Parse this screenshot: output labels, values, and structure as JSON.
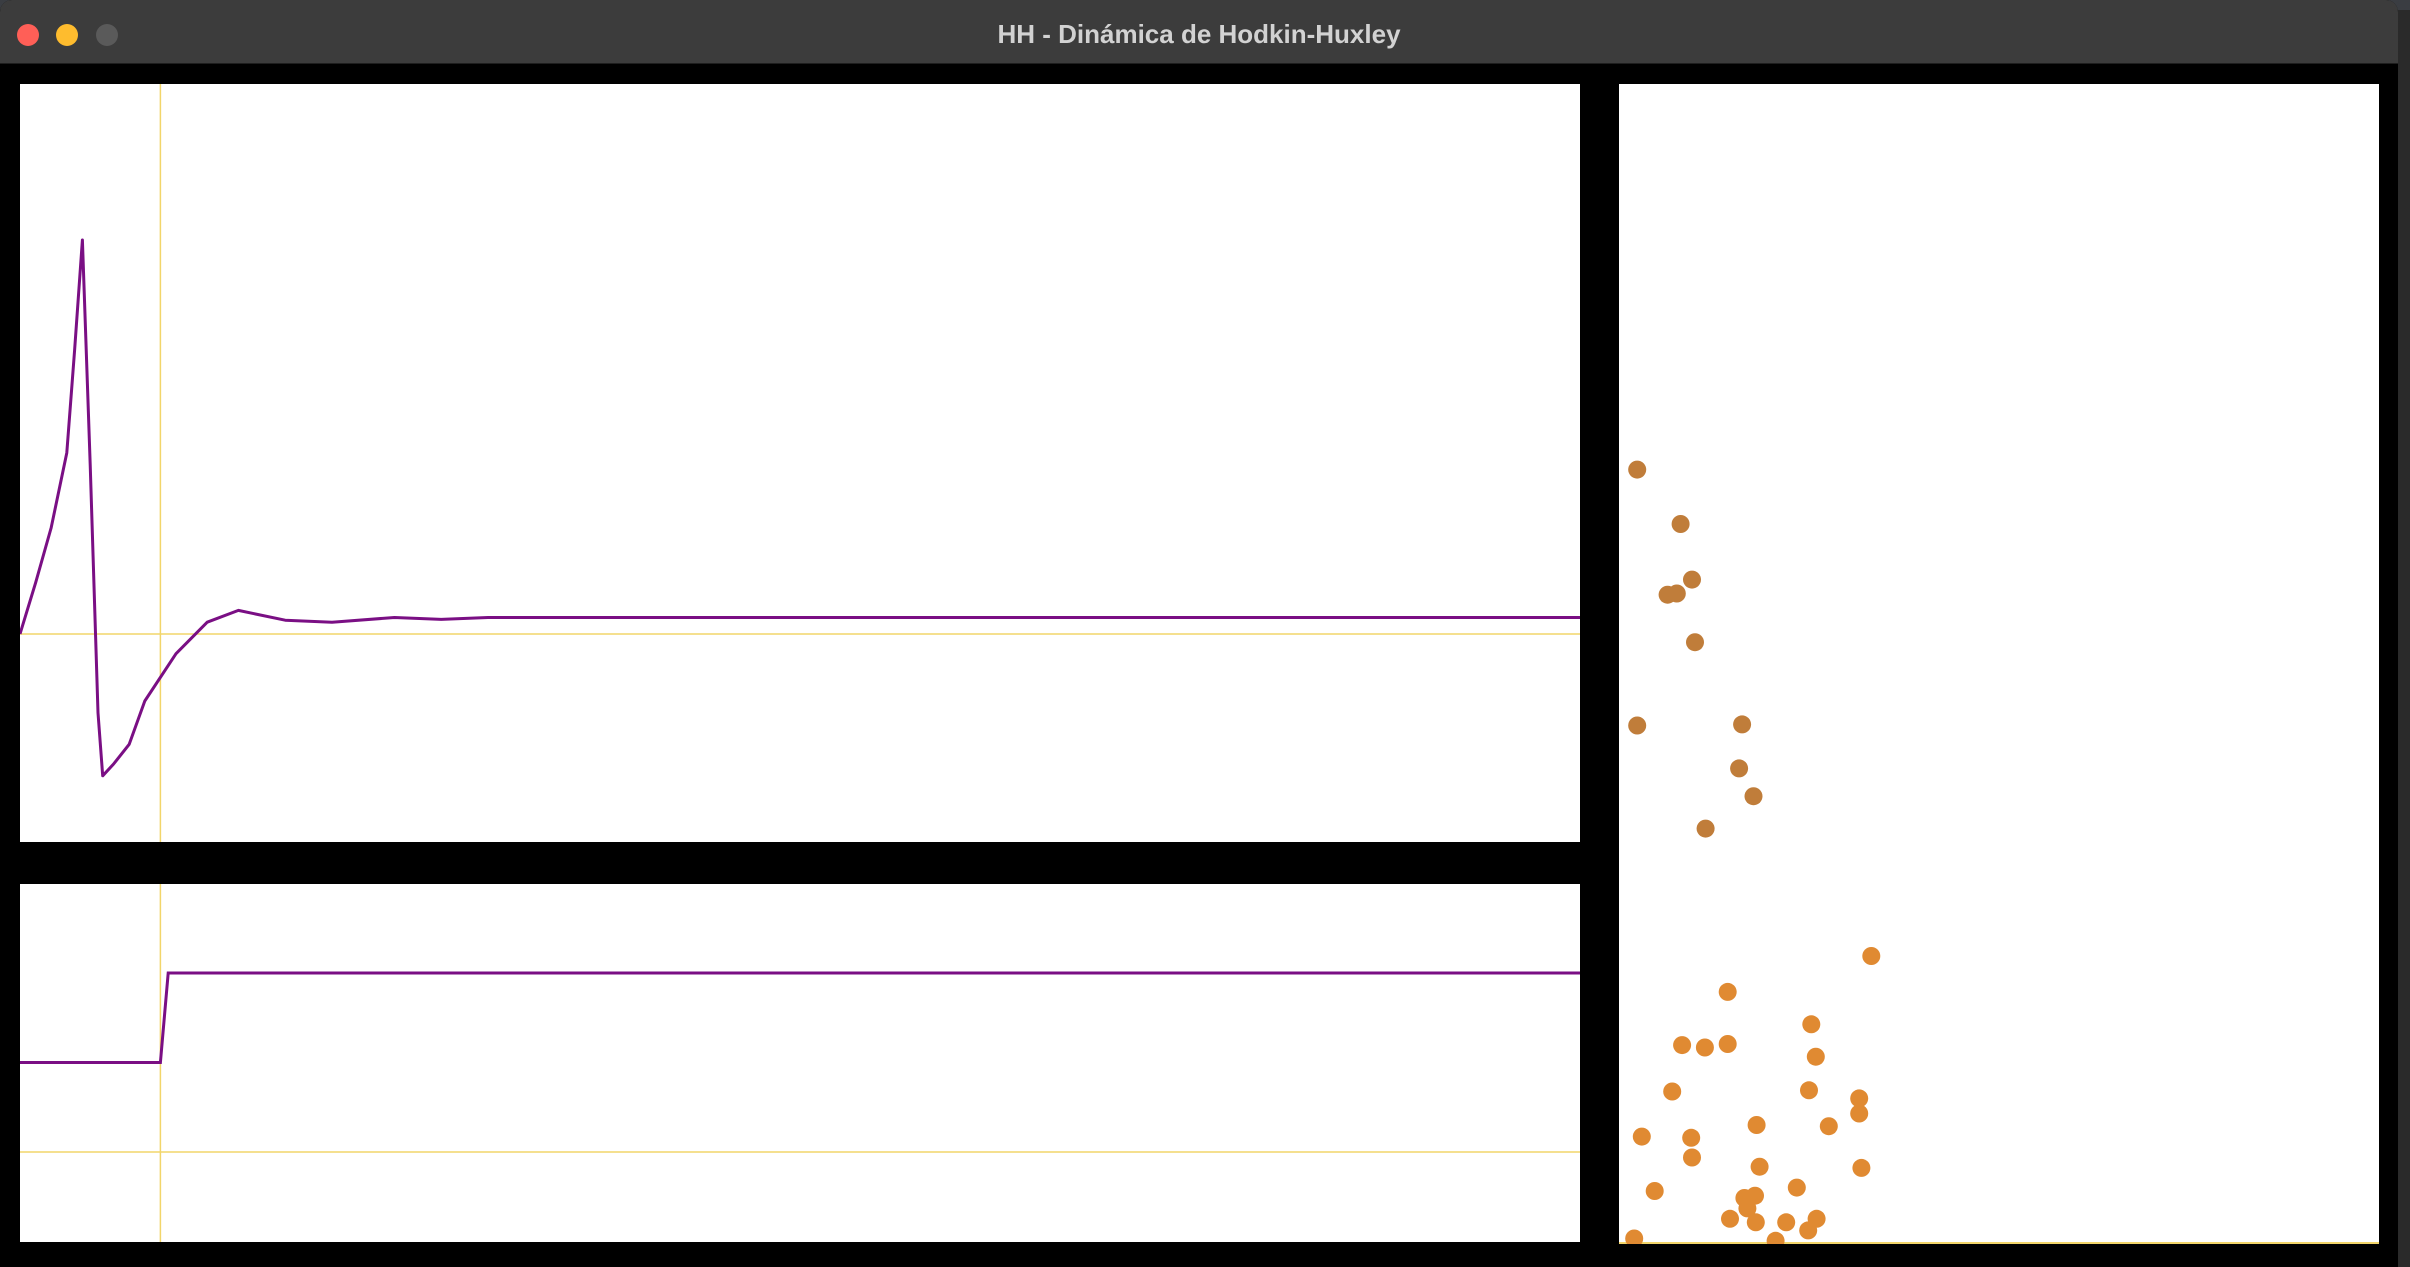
{
  "window": {
    "title": "HH - Dinámica de Hodkin-Huxley"
  },
  "colors": {
    "trace": "#7a0f84",
    "axis": "#f2d56a",
    "dot_upper": "#c07d3a",
    "dot_lower": "#e08a32",
    "panel_bg": "#ffffff",
    "frame": "#000000"
  },
  "voltage_trace": {
    "samples": [
      [
        0.0,
        0.0
      ],
      [
        0.01,
        0.13
      ],
      [
        0.02,
        0.27
      ],
      [
        0.03,
        0.46
      ],
      [
        0.035,
        0.72
      ],
      [
        0.04,
        1.0
      ],
      [
        0.045,
        0.43
      ],
      [
        0.05,
        -0.2
      ],
      [
        0.053,
        -0.36
      ],
      [
        0.06,
        -0.33
      ],
      [
        0.07,
        -0.28
      ],
      [
        0.08,
        -0.17
      ],
      [
        0.1,
        -0.05
      ],
      [
        0.12,
        0.03
      ],
      [
        0.14,
        0.06
      ],
      [
        0.17,
        0.035
      ],
      [
        0.2,
        0.03
      ],
      [
        0.24,
        0.042
      ],
      [
        0.27,
        0.037
      ],
      [
        0.3,
        0.042
      ],
      [
        1.0,
        0.042
      ]
    ],
    "baseline": 0.0,
    "stim_time": 0.09
  },
  "current_trace": {
    "samples": [
      [
        0.0,
        0.5
      ],
      [
        0.09,
        0.5
      ],
      [
        0.095,
        1.0
      ],
      [
        1.0,
        1.0
      ]
    ],
    "baseline": 0.0,
    "stim_time": 0.09
  },
  "scatter": {
    "points": [
      [
        0.024,
        0.667
      ],
      [
        0.081,
        0.62
      ],
      [
        0.096,
        0.572
      ],
      [
        0.064,
        0.559
      ],
      [
        0.076,
        0.56
      ],
      [
        0.1,
        0.518
      ],
      [
        0.024,
        0.446
      ],
      [
        0.162,
        0.447
      ],
      [
        0.158,
        0.409
      ],
      [
        0.177,
        0.385
      ],
      [
        0.114,
        0.357
      ],
      [
        0.332,
        0.247
      ],
      [
        0.143,
        0.216
      ],
      [
        0.253,
        0.188
      ],
      [
        0.143,
        0.171
      ],
      [
        0.083,
        0.17
      ],
      [
        0.113,
        0.168
      ],
      [
        0.259,
        0.16
      ],
      [
        0.07,
        0.13
      ],
      [
        0.25,
        0.131
      ],
      [
        0.316,
        0.124
      ],
      [
        0.316,
        0.111
      ],
      [
        0.276,
        0.1
      ],
      [
        0.181,
        0.101
      ],
      [
        0.03,
        0.091
      ],
      [
        0.095,
        0.09
      ],
      [
        0.185,
        0.065
      ],
      [
        0.096,
        0.073
      ],
      [
        0.319,
        0.064
      ],
      [
        0.047,
        0.044
      ],
      [
        0.234,
        0.047
      ],
      [
        0.165,
        0.038
      ],
      [
        0.179,
        0.04
      ],
      [
        0.169,
        0.029
      ],
      [
        0.26,
        0.02
      ],
      [
        0.146,
        0.02
      ],
      [
        0.18,
        0.017
      ],
      [
        0.22,
        0.017
      ],
      [
        0.249,
        0.01
      ],
      [
        0.02,
        0.003
      ],
      [
        0.206,
        0.001
      ]
    ],
    "split_level": 0.3
  }
}
